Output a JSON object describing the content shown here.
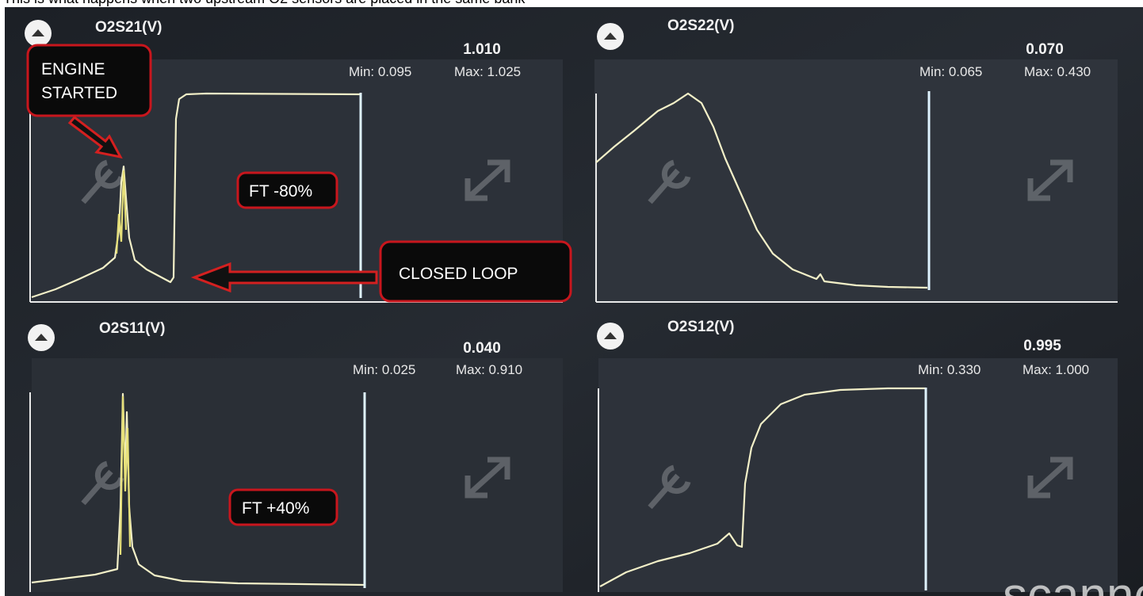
{
  "caption": "This is what happens when two upstream O2 sensors are placed in the same bank",
  "panels": [
    {
      "title": "O2S21(V)",
      "current": "1.010",
      "min": "Min: 0.095",
      "max": "Max: 1.025"
    },
    {
      "title": "O2S22(V)",
      "current": "0.070",
      "min": "Min: 0.065",
      "max": "Max: 0.430"
    },
    {
      "title": "O2S11(V)",
      "current": "0.040",
      "min": "Min: 0.025",
      "max": "Max: 0.910"
    },
    {
      "title": "O2S12(V)",
      "current": "0.995",
      "min": "Min: 0.330",
      "max": "Max: 1.000"
    }
  ],
  "annotations": {
    "engine_started": [
      "ENGINE",
      "STARTED"
    ],
    "ft_top": "FT -80%",
    "closed_loop": "CLOSED LOOP",
    "ft_bottom": "FT +40%"
  },
  "watermark": "scanne"
}
